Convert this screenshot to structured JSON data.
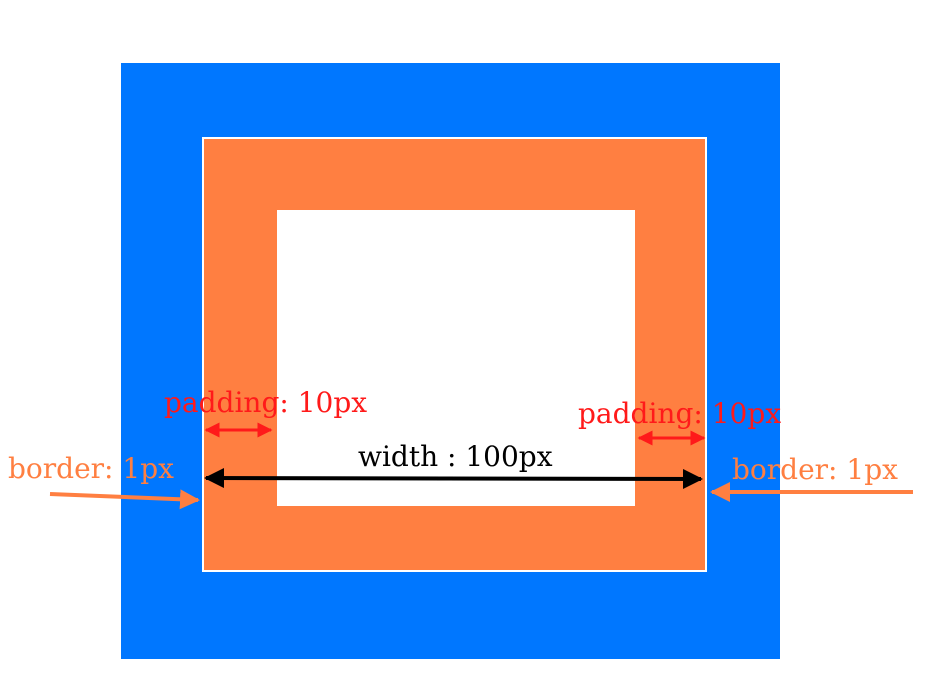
{
  "colors": {
    "outer_box": "#0077ff",
    "padding_area": "#ff7f41",
    "border_line": "#ffffff",
    "content_area": "#ffffff",
    "padding_label": "#ff1a1a",
    "border_label": "#ff7f41",
    "width_label": "#000000"
  },
  "labels": {
    "padding_left": "padding: 10px",
    "padding_right": "padding: 10px",
    "border_left": "border: 1px",
    "border_right": "border: 1px",
    "width": "width : 100px"
  }
}
